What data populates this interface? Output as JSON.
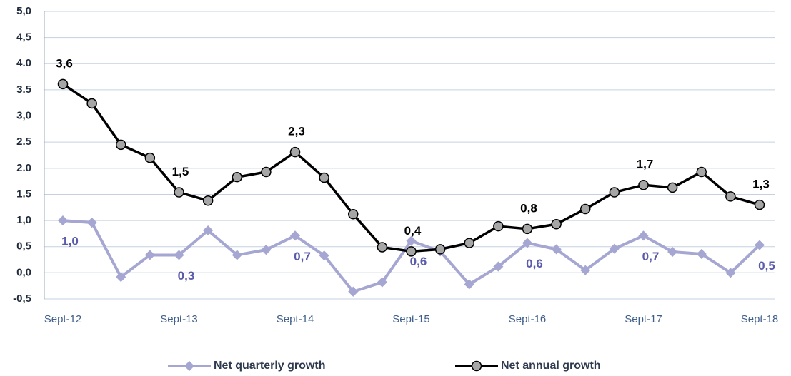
{
  "chart_data": {
    "type": "line",
    "categories": [
      "Sept-12",
      null,
      null,
      null,
      "Sept-13",
      null,
      null,
      null,
      "Sept-14",
      null,
      null,
      null,
      "Sept-15",
      null,
      null,
      null,
      "Sept-16",
      null,
      null,
      null,
      "Sept-17",
      null,
      null,
      null,
      "Sept-18"
    ],
    "series": [
      {
        "name": "Net quarterly growth",
        "color": "#a6a6d2",
        "label_color": "#5b5bab",
        "values": [
          1.0,
          0.96,
          -0.08,
          0.34,
          0.34,
          0.81,
          0.34,
          0.44,
          0.71,
          0.33,
          -0.36,
          -0.18,
          0.61,
          0.41,
          -0.22,
          0.12,
          0.57,
          0.45,
          0.05,
          0.46,
          0.71,
          0.4,
          0.36,
          0.0,
          0.53
        ],
        "value_labels": [
          "1,0",
          null,
          null,
          null,
          "0,3",
          null,
          null,
          null,
          "0,7",
          null,
          null,
          null,
          "0,6",
          null,
          null,
          null,
          "0,6",
          null,
          null,
          null,
          "0,7",
          null,
          null,
          null,
          "0,5"
        ]
      },
      {
        "name": "Net annual growth",
        "color": "#000000",
        "marker_color": "#a6a6a6",
        "label_color": "#000000",
        "values": [
          3.61,
          3.24,
          2.45,
          2.2,
          1.54,
          1.38,
          1.83,
          1.93,
          2.31,
          1.82,
          1.12,
          0.49,
          0.41,
          0.45,
          0.57,
          0.89,
          0.84,
          0.93,
          1.22,
          1.54,
          1.68,
          1.63,
          1.93,
          1.46,
          1.3
        ],
        "value_labels": [
          "3,6",
          null,
          null,
          null,
          "1,5",
          null,
          null,
          null,
          "2,3",
          null,
          null,
          null,
          "0,4",
          null,
          null,
          null,
          "0,8",
          null,
          null,
          null,
          "1,7",
          null,
          null,
          null,
          "1,3"
        ]
      }
    ],
    "ylim": [
      -0.5,
      5.0
    ],
    "yticks": [
      {
        "value": -0.5,
        "label": "-0,5"
      },
      {
        "value": 0,
        "label": "0,0"
      },
      {
        "value": 0.5,
        "label": "0,5"
      },
      {
        "value": 1.0,
        "label": "1,0"
      },
      {
        "value": 1.5,
        "label": "1.5"
      },
      {
        "value": 2.0,
        "label": "2.0"
      },
      {
        "value": 2.5,
        "label": "2.5"
      },
      {
        "value": 3.0,
        "label": "3,0"
      },
      {
        "value": 3.5,
        "label": "3.5"
      },
      {
        "value": 4.0,
        "label": "4.0"
      },
      {
        "value": 4.5,
        "label": "4,5"
      },
      {
        "value": 5.0,
        "label": "5,0"
      }
    ],
    "grid": true
  }
}
